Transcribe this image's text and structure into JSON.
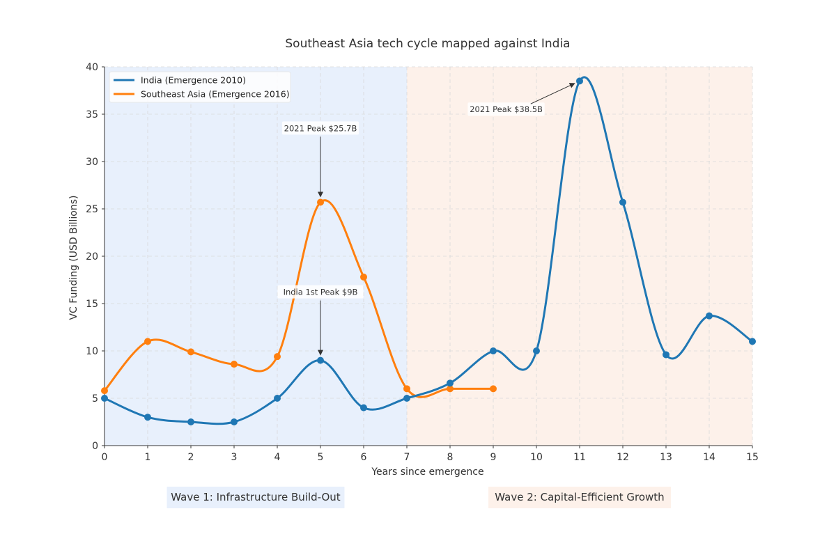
{
  "chart_data": {
    "type": "line",
    "title": "Southeast Asia tech cycle mapped against India",
    "xlabel": "Years since emergence",
    "ylabel": "VC Funding (USD Billions)",
    "xlim": [
      0,
      15
    ],
    "ylim": [
      0,
      40
    ],
    "x_ticks": [
      0,
      1,
      2,
      3,
      4,
      5,
      6,
      7,
      8,
      9,
      10,
      11,
      12,
      13,
      14,
      15
    ],
    "y_ticks": [
      0,
      5,
      10,
      15,
      20,
      25,
      30,
      35,
      40
    ],
    "grid": true,
    "legend_position": "top-left",
    "series": [
      {
        "name": "India (Emergence 2010)",
        "color": "#1f77b4",
        "x": [
          0,
          1,
          2,
          3,
          4,
          5,
          6,
          7,
          8,
          9,
          10,
          11,
          12,
          13,
          14,
          15
        ],
        "y": [
          5.0,
          3.0,
          2.5,
          2.5,
          5.0,
          9.0,
          4.0,
          5.0,
          6.6,
          10.0,
          10.0,
          38.5,
          25.7,
          9.6,
          13.7,
          11.0
        ]
      },
      {
        "name": "Southeast Asia (Emergence 2016)",
        "color": "#ff7f0e",
        "x": [
          0,
          1,
          2,
          3,
          4,
          5,
          6,
          7,
          8,
          9
        ],
        "y": [
          5.8,
          11.0,
          9.9,
          8.6,
          9.4,
          25.7,
          17.8,
          6.0,
          6.0,
          6.0
        ]
      }
    ],
    "shaded_regions": [
      {
        "label": "Wave 1: Infrastructure Build-Out",
        "x_start": 0,
        "x_end": 7,
        "color": "#e8f0fc"
      },
      {
        "label": "Wave 2: Capital-Efficient Growth",
        "x_start": 7,
        "x_end": 15,
        "color": "#fdf1ea"
      }
    ],
    "annotations": [
      {
        "text": "2021 Peak $25.7B",
        "x": 5,
        "y": 25.7,
        "text_x": 5,
        "text_y": 33.5
      },
      {
        "text": "India 1st Peak $9B",
        "x": 5,
        "y": 9.0,
        "text_x": 5,
        "text_y": 16.2
      },
      {
        "text": "2021 Peak $38.5B",
        "x": 11,
        "y": 38.5,
        "text_x": 9.3,
        "text_y": 35.5
      }
    ]
  }
}
